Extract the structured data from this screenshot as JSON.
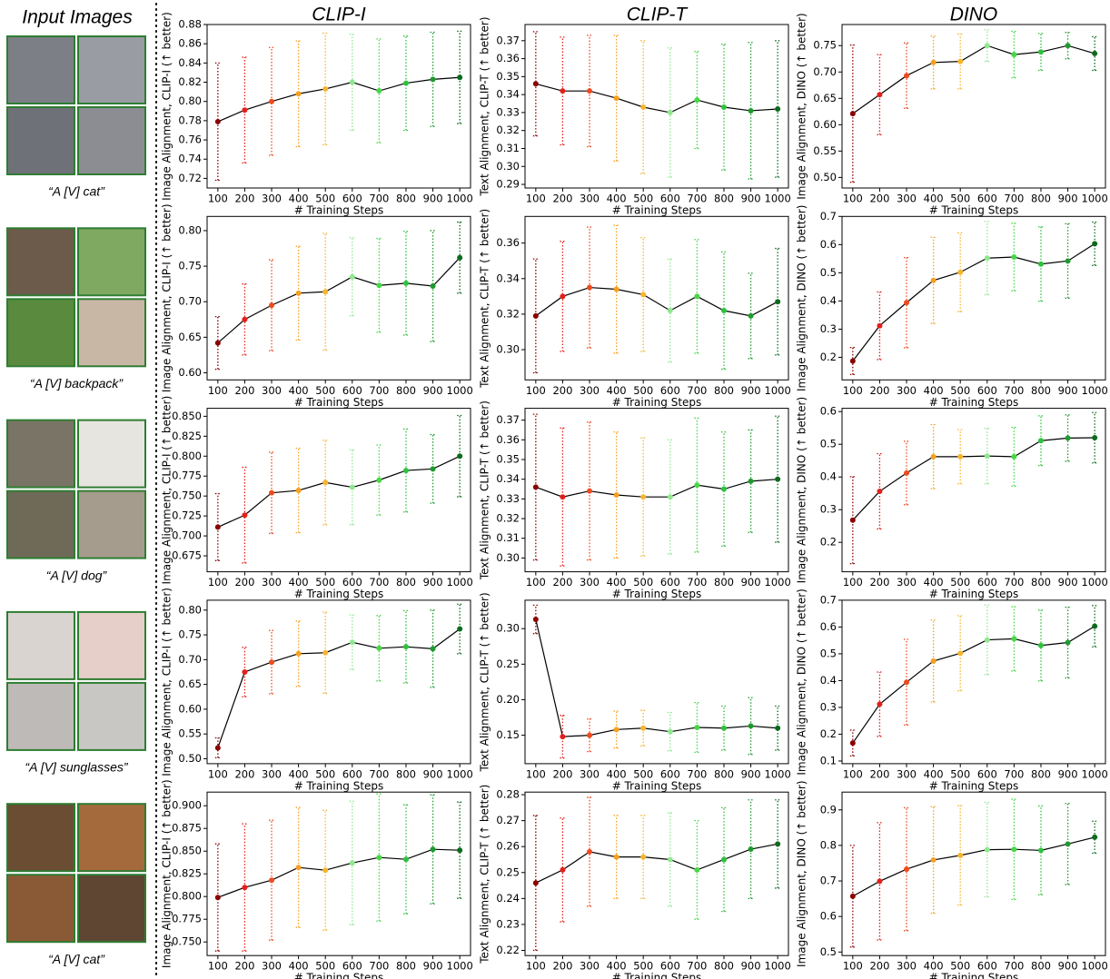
{
  "header": {
    "title": "Input Images"
  },
  "columns": [
    "CLIP-I",
    "CLIP-T",
    "DINO"
  ],
  "captions": [
    "“A [V] cat”",
    "“A [V] backpack”",
    "“A [V] dog”",
    "“A [V] sunglasses”",
    "“A [V] cat”"
  ],
  "marker_colors": [
    "#8b0000",
    "#e3201b",
    "#f04a1e",
    "#f5a020",
    "#f7b52c",
    "#8fe88f",
    "#46d846",
    "#2ec23c",
    "#1f9a2e",
    "#0b6b1c"
  ],
  "chart_data": [
    {
      "type": "line",
      "x_label": "# Training Steps",
      "y_label": "Image Alignment, CLIP-I (↑ better)",
      "x": [
        100,
        200,
        300,
        400,
        500,
        600,
        700,
        800,
        900,
        1000
      ],
      "values": [
        0.779,
        0.791,
        0.8,
        0.808,
        0.813,
        0.82,
        0.811,
        0.819,
        0.823,
        0.825
      ],
      "errors": [
        0.061,
        0.055,
        0.056,
        0.055,
        0.058,
        0.05,
        0.054,
        0.049,
        0.049,
        0.048
      ],
      "xlim": [
        60,
        1040
      ],
      "xticks": [
        100,
        200,
        300,
        400,
        500,
        600,
        700,
        800,
        900,
        1000
      ],
      "ylim": [
        0.71,
        0.88
      ],
      "yticks": [
        0.72,
        0.74,
        0.76,
        0.78,
        {
          "value": 0.8,
          "label": "0.80"
        },
        0.82,
        0.84,
        0.86,
        0.88
      ],
      "line_color": "#000000"
    },
    {
      "type": "line",
      "x_label": "# Training Steps",
      "y_label": "Text Alignment, CLIP-T (↑ better)",
      "x": [
        100,
        200,
        300,
        400,
        500,
        600,
        700,
        800,
        900,
        1000
      ],
      "values": [
        0.346,
        0.342,
        0.342,
        0.338,
        0.333,
        0.33,
        0.337,
        0.333,
        0.331,
        0.332
      ],
      "errors": [
        0.029,
        0.03,
        0.031,
        0.035,
        0.037,
        0.036,
        0.027,
        0.035,
        0.038,
        0.038
      ],
      "xlim": [
        60,
        1040
      ],
      "xticks": [
        100,
        200,
        300,
        400,
        500,
        600,
        700,
        800,
        900,
        1000
      ],
      "ylim": [
        0.288,
        0.379
      ],
      "yticks": [
        0.29,
        {
          "value": 0.3,
          "label": "0.30"
        },
        0.31,
        0.32,
        0.33,
        0.34,
        0.35,
        0.36,
        0.37
      ],
      "line_color": "#000000"
    },
    {
      "type": "line",
      "x_label": "# Training Steps",
      "y_label": "Image Alignment, DINO (↑ better)",
      "x": [
        100,
        200,
        300,
        400,
        500,
        600,
        700,
        800,
        900,
        1000
      ],
      "values": [
        0.621,
        0.657,
        0.693,
        0.718,
        0.72,
        0.75,
        0.733,
        0.738,
        0.75,
        0.735
      ],
      "errors": [
        0.13,
        0.076,
        0.062,
        0.05,
        0.052,
        0.03,
        0.044,
        0.035,
        0.025,
        0.032
      ],
      "xlim": [
        60,
        1040
      ],
      "xticks": [
        100,
        200,
        300,
        400,
        500,
        600,
        700,
        800,
        900,
        1000
      ],
      "ylim": [
        0.48,
        0.79
      ],
      "yticks": [
        {
          "value": 0.5,
          "label": "0.50"
        },
        0.55,
        {
          "value": 0.6,
          "label": "0.60"
        },
        0.65,
        {
          "value": 0.7,
          "label": "0.70"
        },
        0.75
      ],
      "line_color": "#000000"
    },
    {
      "type": "line",
      "x_label": "# Training Steps",
      "y_label": "Image Alignment, CLIP-I (↑ better)",
      "x": [
        100,
        200,
        300,
        400,
        500,
        600,
        700,
        800,
        900,
        1000
      ],
      "values": [
        0.642,
        0.675,
        0.695,
        0.712,
        0.714,
        0.735,
        0.723,
        0.726,
        0.722,
        0.762
      ],
      "errors": [
        0.037,
        0.05,
        0.064,
        0.066,
        0.082,
        0.055,
        0.066,
        0.073,
        0.078,
        0.05
      ],
      "xlim": [
        60,
        1040
      ],
      "xticks": [
        100,
        200,
        300,
        400,
        500,
        600,
        700,
        800,
        900,
        1000
      ],
      "ylim": [
        0.59,
        0.82
      ],
      "yticks": [
        {
          "value": 0.6,
          "label": "0.60"
        },
        0.65,
        {
          "value": 0.7,
          "label": "0.70"
        },
        0.75,
        {
          "value": 0.8,
          "label": "0.80"
        }
      ],
      "line_color": "#000000"
    },
    {
      "type": "line",
      "x_label": "# Training Steps",
      "y_label": "Text Alignment, CLIP-T (↑ better)",
      "x": [
        100,
        200,
        300,
        400,
        500,
        600,
        700,
        800,
        900,
        1000
      ],
      "values": [
        0.319,
        0.33,
        0.335,
        0.334,
        0.331,
        0.322,
        0.33,
        0.322,
        0.319,
        0.327
      ],
      "errors": [
        0.032,
        0.031,
        0.034,
        0.036,
        0.032,
        0.029,
        0.032,
        0.033,
        0.024,
        0.03
      ],
      "xlim": [
        60,
        1040
      ],
      "xticks": [
        100,
        200,
        300,
        400,
        500,
        600,
        700,
        800,
        900,
        1000
      ],
      "ylim": [
        0.283,
        0.375
      ],
      "yticks": [
        {
          "value": 0.3,
          "label": "0.30"
        },
        0.32,
        0.34,
        0.36
      ],
      "line_color": "#000000"
    },
    {
      "type": "line",
      "x_label": "# Training Steps",
      "y_label": "Image Alignment, DINO (↑ better)",
      "x": [
        100,
        200,
        300,
        400,
        500,
        600,
        700,
        800,
        900,
        1000
      ],
      "values": [
        0.187,
        0.312,
        0.394,
        0.473,
        0.502,
        0.552,
        0.556,
        0.531,
        0.542,
        0.603
      ],
      "errors": [
        0.048,
        0.12,
        0.16,
        0.153,
        0.14,
        0.13,
        0.12,
        0.132,
        0.132,
        0.077
      ],
      "xlim": [
        60,
        1040
      ],
      "xticks": [
        100,
        200,
        300,
        400,
        500,
        600,
        700,
        800,
        900,
        1000
      ],
      "ylim": [
        0.12,
        0.7
      ],
      "yticks": [
        0.2,
        0.3,
        0.4,
        0.5,
        0.6,
        0.7
      ],
      "line_color": "#000000"
    },
    {
      "type": "line",
      "x_label": "# Training Steps",
      "y_label": "Image Alignment, CLIP-I (↑ better)",
      "x": [
        100,
        200,
        300,
        400,
        500,
        600,
        700,
        800,
        900,
        1000
      ],
      "values": [
        0.711,
        0.726,
        0.754,
        0.757,
        0.767,
        0.761,
        0.77,
        0.782,
        0.784,
        0.8
      ],
      "errors": [
        0.042,
        0.06,
        0.051,
        0.053,
        0.053,
        0.047,
        0.044,
        0.052,
        0.043,
        0.051
      ],
      "xlim": [
        60,
        1040
      ],
      "xticks": [
        100,
        200,
        300,
        400,
        500,
        600,
        700,
        800,
        900,
        1000
      ],
      "ylim": [
        0.655,
        0.86
      ],
      "yticks": [
        0.675,
        {
          "value": 0.7,
          "label": "0.700"
        },
        0.725,
        {
          "value": 0.75,
          "label": "0.750"
        },
        0.775,
        {
          "value": 0.8,
          "label": "0.800"
        },
        0.825,
        {
          "value": 0.85,
          "label": "0.850"
        }
      ],
      "line_color": "#000000"
    },
    {
      "type": "line",
      "x_label": "# Training Steps",
      "y_label": "Text Alignment, CLIP-T (↑ better)",
      "x": [
        100,
        200,
        300,
        400,
        500,
        600,
        700,
        800,
        900,
        1000
      ],
      "values": [
        0.336,
        0.331,
        0.334,
        0.332,
        0.331,
        0.331,
        0.337,
        0.335,
        0.339,
        0.34
      ],
      "errors": [
        0.037,
        0.035,
        0.035,
        0.032,
        0.03,
        0.029,
        0.034,
        0.029,
        0.026,
        0.032
      ],
      "xlim": [
        60,
        1040
      ],
      "xticks": [
        100,
        200,
        300,
        400,
        500,
        600,
        700,
        800,
        900,
        1000
      ],
      "ylim": [
        0.293,
        0.376
      ],
      "yticks": [
        {
          "value": 0.3,
          "label": "0.30"
        },
        0.31,
        0.32,
        0.33,
        0.34,
        0.35,
        0.36,
        0.37
      ],
      "line_color": "#000000"
    },
    {
      "type": "line",
      "x_label": "# Training Steps",
      "y_label": "Image Alignment, DINO (↑ better)",
      "x": [
        100,
        200,
        300,
        400,
        500,
        600,
        700,
        800,
        900,
        1000
      ],
      "values": [
        0.268,
        0.356,
        0.412,
        0.462,
        0.462,
        0.464,
        0.462,
        0.511,
        0.519,
        0.52
      ],
      "errors": [
        0.133,
        0.115,
        0.097,
        0.098,
        0.083,
        0.085,
        0.09,
        0.076,
        0.071,
        0.077
      ],
      "xlim": [
        60,
        1040
      ],
      "xticks": [
        100,
        200,
        300,
        400,
        500,
        600,
        700,
        800,
        900,
        1000
      ],
      "ylim": [
        0.11,
        0.61
      ],
      "yticks": [
        0.2,
        0.3,
        0.4,
        0.5,
        0.6
      ],
      "line_color": "#000000"
    },
    {
      "type": "line",
      "x_label": "# Training Steps",
      "y_label": "Image Alignment, CLIP-I (↑ better)",
      "x": [
        100,
        200,
        300,
        400,
        500,
        600,
        700,
        800,
        900,
        1000
      ],
      "values": [
        0.522,
        0.675,
        0.695,
        0.712,
        0.714,
        0.735,
        0.723,
        0.726,
        0.722,
        0.762
      ],
      "errors": [
        0.02,
        0.05,
        0.064,
        0.066,
        0.082,
        0.055,
        0.066,
        0.073,
        0.078,
        0.05
      ],
      "xlim": [
        60,
        1040
      ],
      "xticks": [
        100,
        200,
        300,
        400,
        500,
        600,
        700,
        800,
        900,
        1000
      ],
      "ylim": [
        0.49,
        0.82
      ],
      "yticks": [
        {
          "value": 0.5,
          "label": "0.50"
        },
        0.55,
        {
          "value": 0.6,
          "label": "0.60"
        },
        0.65,
        {
          "value": 0.7,
          "label": "0.70"
        },
        0.75,
        {
          "value": 0.8,
          "label": "0.80"
        }
      ],
      "line_color": "#000000"
    },
    {
      "type": "line",
      "x_label": "# Training Steps",
      "y_label": "Text Alignment, CLIP-T (↑ better)",
      "x": [
        100,
        200,
        300,
        400,
        500,
        600,
        700,
        800,
        900,
        1000
      ],
      "values": [
        0.313,
        0.148,
        0.15,
        0.158,
        0.16,
        0.155,
        0.161,
        0.16,
        0.163,
        0.16
      ],
      "errors": [
        0.02,
        0.03,
        0.023,
        0.026,
        0.025,
        0.027,
        0.035,
        0.031,
        0.04,
        0.031
      ],
      "xlim": [
        60,
        1040
      ],
      "xticks": [
        100,
        200,
        300,
        400,
        500,
        600,
        700,
        800,
        900,
        1000
      ],
      "ylim": [
        0.11,
        0.34
      ],
      "yticks": [
        0.15,
        {
          "value": 0.2,
          "label": "0.20"
        },
        0.25,
        {
          "value": 0.3,
          "label": "0.30"
        }
      ],
      "line_color": "#000000"
    },
    {
      "type": "line",
      "x_label": "# Training Steps",
      "y_label": "Image Alignment, DINO (↑ better)",
      "x": [
        100,
        200,
        300,
        400,
        500,
        600,
        700,
        800,
        900,
        1000
      ],
      "values": [
        0.167,
        0.312,
        0.394,
        0.473,
        0.502,
        0.552,
        0.556,
        0.531,
        0.542,
        0.603
      ],
      "errors": [
        0.048,
        0.12,
        0.16,
        0.153,
        0.14,
        0.13,
        0.12,
        0.132,
        0.132,
        0.077
      ],
      "xlim": [
        60,
        1040
      ],
      "xticks": [
        100,
        200,
        300,
        400,
        500,
        600,
        700,
        800,
        900,
        1000
      ],
      "ylim": [
        0.09,
        0.7
      ],
      "yticks": [
        0.1,
        0.2,
        0.3,
        0.4,
        0.5,
        0.6,
        0.7
      ],
      "line_color": "#000000"
    },
    {
      "type": "line",
      "x_label": "# Training Steps",
      "y_label": "Image Alignment, CLIP-I (↑ better)",
      "x": [
        100,
        200,
        300,
        400,
        500,
        600,
        700,
        800,
        900,
        1000
      ],
      "values": [
        0.799,
        0.81,
        0.818,
        0.832,
        0.829,
        0.837,
        0.843,
        0.841,
        0.852,
        0.851
      ],
      "errors": [
        0.059,
        0.07,
        0.066,
        0.066,
        0.066,
        0.068,
        0.07,
        0.06,
        0.06,
        0.053
      ],
      "xlim": [
        60,
        1040
      ],
      "xticks": [
        100,
        200,
        300,
        400,
        500,
        600,
        700,
        800,
        900,
        1000
      ],
      "ylim": [
        0.735,
        0.915
      ],
      "yticks": [
        {
          "value": 0.75,
          "label": "0.750"
        },
        0.775,
        {
          "value": 0.8,
          "label": "0.800"
        },
        0.825,
        {
          "value": 0.85,
          "label": "0.850"
        },
        0.875,
        {
          "value": 0.9,
          "label": "0.900"
        }
      ],
      "line_color": "#000000"
    },
    {
      "type": "line",
      "x_label": "# Training Steps",
      "y_label": "Text Alignment, CLIP-T (↑ better)",
      "x": [
        100,
        200,
        300,
        400,
        500,
        600,
        700,
        800,
        900,
        1000
      ],
      "values": [
        0.246,
        0.251,
        0.258,
        0.256,
        0.256,
        0.255,
        0.251,
        0.255,
        0.259,
        0.261
      ],
      "errors": [
        0.026,
        0.02,
        0.021,
        0.016,
        0.016,
        0.018,
        0.019,
        0.02,
        0.019,
        0.017
      ],
      "xlim": [
        60,
        1040
      ],
      "xticks": [
        100,
        200,
        300,
        400,
        500,
        600,
        700,
        800,
        900,
        1000
      ],
      "ylim": [
        0.218,
        0.281
      ],
      "yticks": [
        0.22,
        0.23,
        0.24,
        0.25,
        0.26,
        0.27,
        0.28
      ],
      "line_color": "#000000"
    },
    {
      "type": "line",
      "x_label": "# Training Steps",
      "y_label": "Image Alignment, DINO (↑ better)",
      "x": [
        100,
        200,
        300,
        400,
        500,
        600,
        700,
        800,
        900,
        1000
      ],
      "values": [
        0.657,
        0.699,
        0.733,
        0.759,
        0.772,
        0.788,
        0.789,
        0.786,
        0.804,
        0.823
      ],
      "errors": [
        0.143,
        0.165,
        0.173,
        0.15,
        0.14,
        0.133,
        0.141,
        0.125,
        0.114,
        0.045
      ],
      "xlim": [
        60,
        1040
      ],
      "xticks": [
        100,
        200,
        300,
        400,
        500,
        600,
        700,
        800,
        900,
        1000
      ],
      "ylim": [
        0.49,
        0.95
      ],
      "yticks": [
        0.5,
        0.6,
        0.7,
        0.8,
        0.9
      ],
      "line_color": "#000000"
    }
  ]
}
